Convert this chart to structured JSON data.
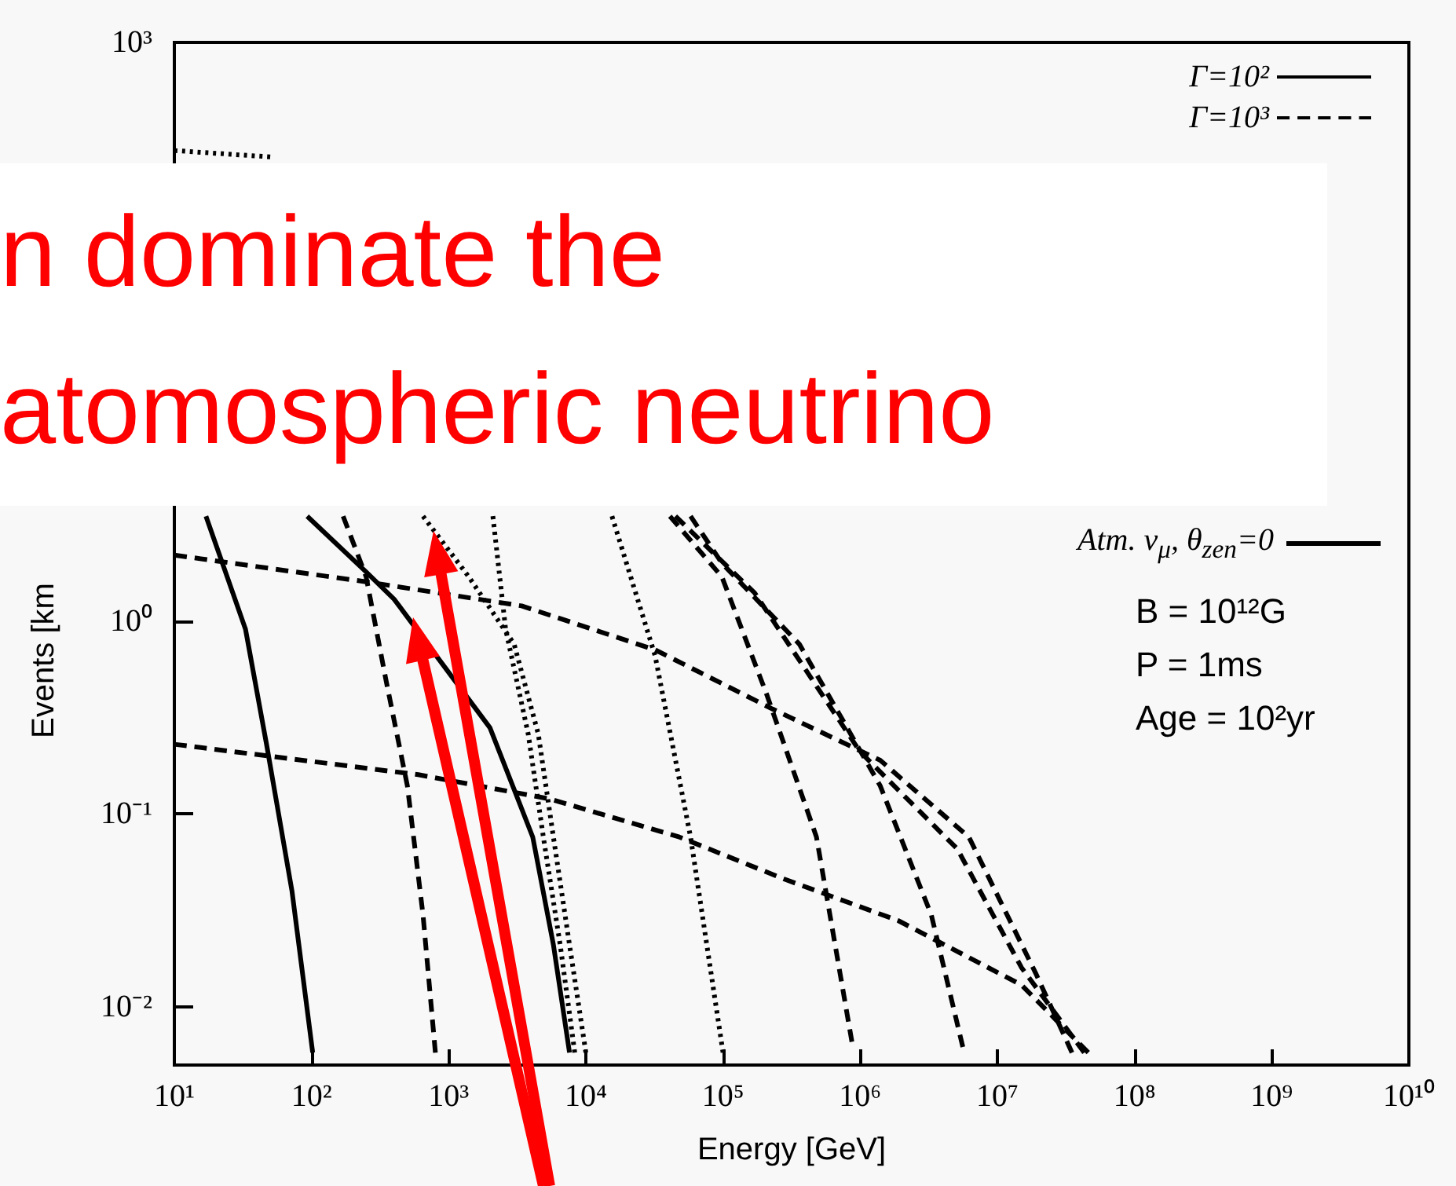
{
  "chart_data": {
    "type": "line",
    "xlabel": "Energy [GeV]",
    "ylabel": "Events [km",
    "log": "xy",
    "grid": false,
    "legend": "top right",
    "marker": "none",
    "xlim": [
      10,
      10000000000
    ],
    "ylim": [
      0.005,
      1000
    ],
    "xticks": [
      {
        "value": 10,
        "label": "10¹"
      },
      {
        "value": 100,
        "label": "10²"
      },
      {
        "value": 1000,
        "label": "10³"
      },
      {
        "value": 10000,
        "label": "10⁴"
      },
      {
        "value": 100000,
        "label": "10⁵"
      },
      {
        "value": 1000000,
        "label": "10⁶"
      },
      {
        "value": 10000000,
        "label": "10⁷"
      },
      {
        "value": 100000000,
        "label": "10⁸"
      },
      {
        "value": 1000000000,
        "label": "10⁹"
      },
      {
        "value": 10000000000,
        "label": "10¹⁰"
      }
    ],
    "yticks": [
      {
        "value": 0.01,
        "label": "10⁻²"
      },
      {
        "value": 0.1,
        "label": "10⁻¹"
      },
      {
        "value": 1,
        "label": "10⁰"
      },
      {
        "value": 10,
        "label": null
      },
      {
        "value": 100,
        "label": null
      },
      {
        "value": 1000,
        "label": "10³"
      }
    ],
    "annotations": [
      "n dominate the",
      "atomospheric neutrino",
      "B = 10¹²G",
      "P = 1ms",
      "Age = 10²yr"
    ],
    "series": [
      {
        "name": "Γ=10²",
        "color": "#000000",
        "line_style": "solid",
        "x": [
          17,
          33,
          47,
          72,
          102
        ],
        "values": [
          3.5,
          0.91,
          0.23,
          0.04,
          0.0058
        ]
      },
      {
        "name": "Γ=10³",
        "color": "#000000",
        "line_style": "dashed",
        "x": [
          170,
          250,
          350,
          500,
          650,
          800
        ],
        "values": [
          3.5,
          1.7,
          0.49,
          0.14,
          0.03,
          0.0058
        ]
      },
      {
        "name": "Atm. ν$_{μ}$, θ$_{zen}$=0",
        "color": "#000000",
        "line_style": "solid",
        "x": [
          93,
          250,
          400,
          2000,
          4100,
          5800,
          7600
        ],
        "values": [
          3.5,
          1.8,
          1.3,
          0.28,
          0.076,
          0.021,
          0.0058
        ]
      },
      {
        "color": "#000000",
        "line_style": "dotted",
        "x": [
          650,
          1400,
          3000,
          4500,
          5800,
          7600,
          10000
        ],
        "values": [
          3.5,
          1.7,
          0.76,
          0.26,
          0.076,
          0.021,
          0.0058
        ]
      },
      {
        "color": "#000000",
        "line_style": "dotted",
        "x": [
          2100,
          2600,
          3800,
          4900,
          6500,
          8300
        ],
        "values": [
          3.5,
          0.91,
          0.26,
          0.076,
          0.021,
          0.0058
        ]
      },
      {
        "color": "#000000",
        "line_style": "dotted",
        "x": [
          15500,
          32000,
          58000,
          100000
        ],
        "values": [
          3.5,
          0.66,
          0.076,
          0.0058
        ]
      },
      {
        "color": "#000000",
        "line_style": "dashed",
        "x": [
          41000,
          98000,
          210000,
          480000,
          870000
        ],
        "values": [
          3.5,
          1.7,
          0.41,
          0.076,
          0.0066
        ]
      },
      {
        "color": "#000000",
        "line_style": "dashed",
        "x": [
          58000,
          98000,
          360000,
          1400000,
          3300000,
          5600000
        ],
        "values": [
          3.5,
          2.0,
          0.76,
          0.14,
          0.03,
          0.0062
        ]
      },
      {
        "color": "#000000",
        "line_style": "dashed",
        "x": [
          45000,
          170000,
          1000000,
          5100000,
          15000000,
          43000000
        ],
        "values": [
          3.5,
          1.4,
          0.21,
          0.066,
          0.016,
          0.0058
        ]
      },
      {
        "color": "#000000",
        "line_style": "dashed",
        "x": [
          10,
          250,
          3400,
          32000,
          230000,
          1400000,
          6200000,
          19000000,
          35000000
        ],
        "values": [
          2.2,
          1.6,
          1.2,
          0.71,
          0.35,
          0.19,
          0.076,
          0.015,
          0.0058
        ]
      },
      {
        "color": "#000000",
        "line_style": "dashed",
        "x": [
          10,
          600,
          5400,
          48000,
          280000,
          1900000,
          15000000,
          46000000
        ],
        "values": [
          0.23,
          0.16,
          0.12,
          0.076,
          0.046,
          0.028,
          0.013,
          0.0058
        ]
      },
      {
        "color": "#000000",
        "line_style": "dotted",
        "x": [
          10,
          50
        ],
        "values": [
          275,
          255
        ]
      }
    ]
  }
}
